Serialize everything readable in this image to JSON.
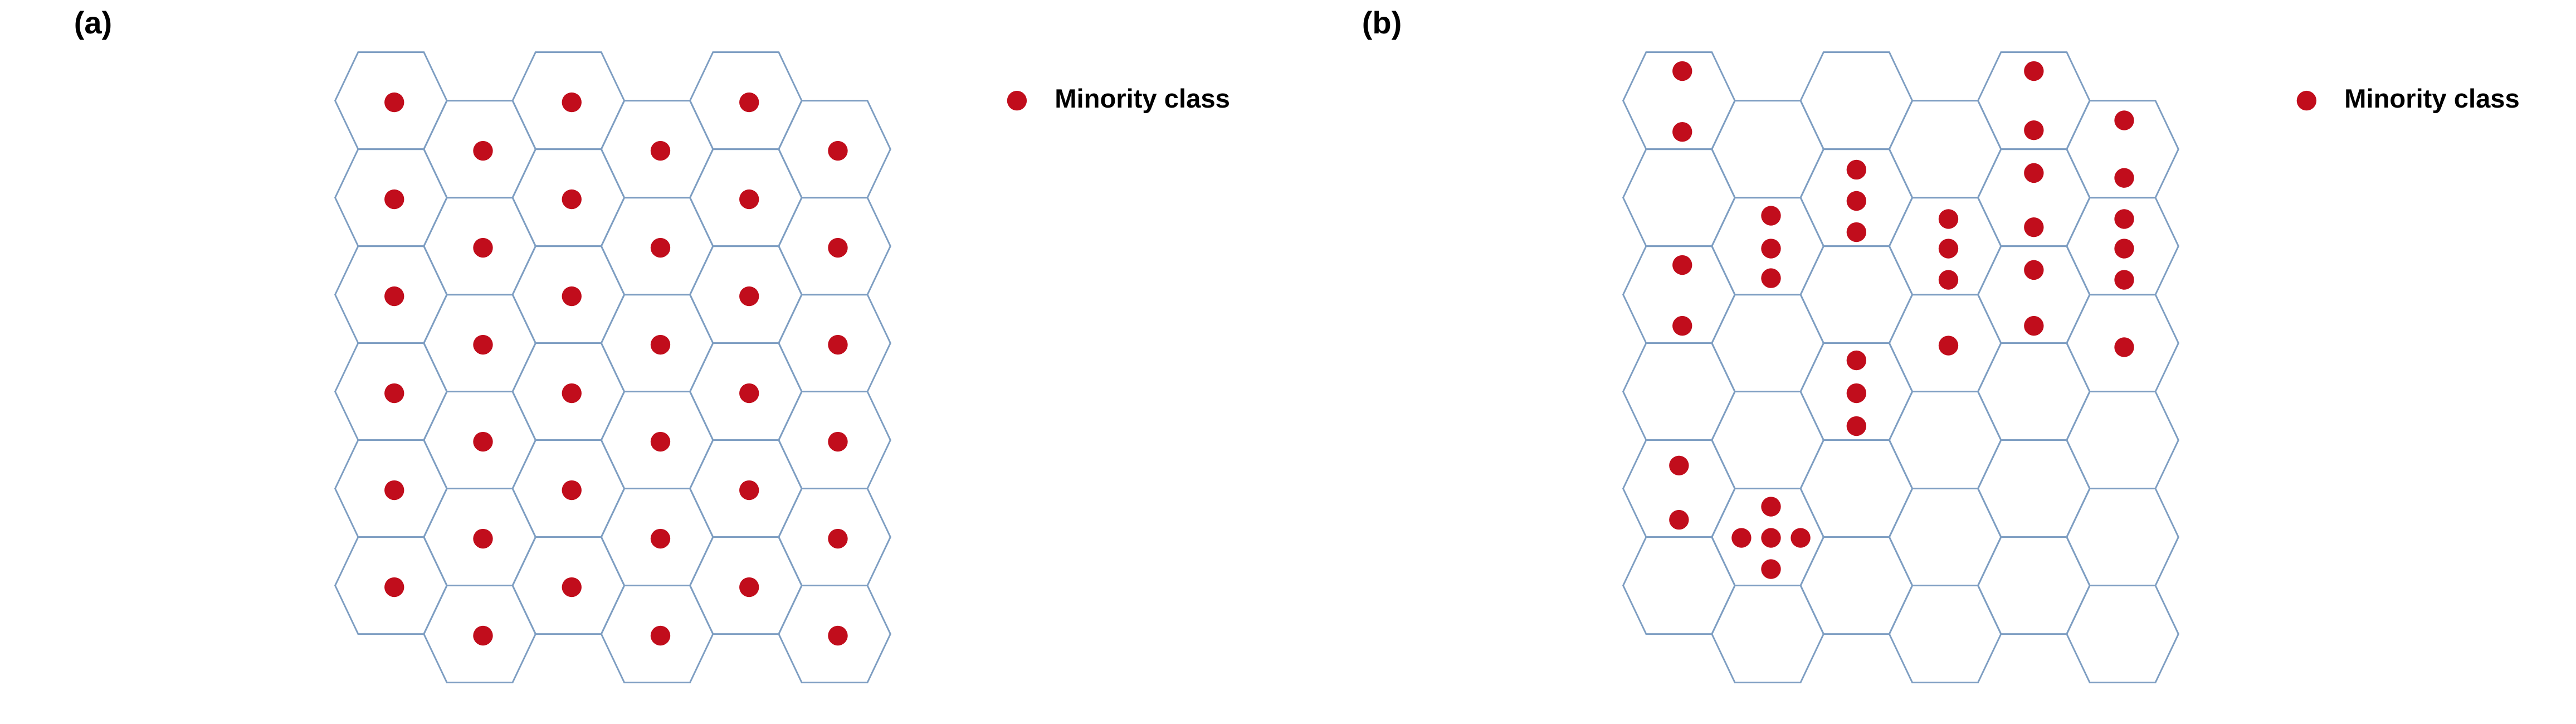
{
  "panels": [
    {
      "label": "(a)",
      "legend": "Minority class"
    },
    {
      "label": "(b)",
      "legend": "Minority class"
    }
  ]
}
